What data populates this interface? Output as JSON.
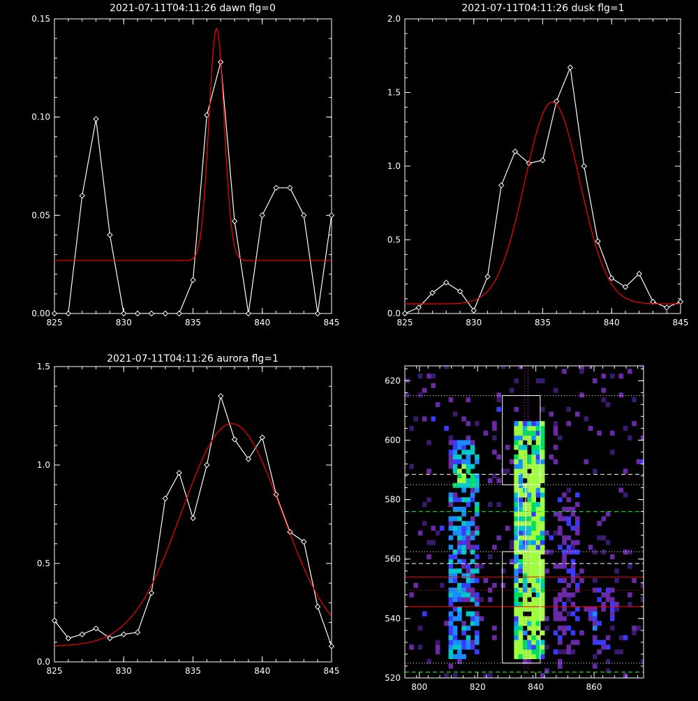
{
  "chart_data": [
    {
      "type": "line",
      "title": "2021-07-11T04:11:26 dawn flg=0",
      "xlim": [
        825,
        845
      ],
      "ylim": [
        0,
        0.15
      ],
      "xticks": [
        "825",
        "830",
        "835",
        "840",
        "845"
      ],
      "xtick_values": [
        825,
        830,
        835,
        840,
        845
      ],
      "yticks": [
        "0.00",
        "0.05",
        "0.10",
        "0.15"
      ],
      "ytick_values": [
        0,
        0.05,
        0.1,
        0.15
      ],
      "series": [
        {
          "color": "#ffffff",
          "marker": "diamond",
          "x": [
            825,
            826,
            827,
            828,
            829,
            830,
            831,
            832,
            833,
            834,
            835,
            836,
            837,
            838,
            839,
            840,
            841,
            842,
            843,
            844,
            845
          ],
          "y": [
            0,
            0,
            0.06,
            0.099,
            0.04,
            0,
            0,
            0,
            0,
            0,
            0.017,
            0.101,
            0.128,
            0.047,
            0,
            0.05,
            0.064,
            0.064,
            0.05,
            0,
            0.05
          ]
        },
        {
          "color": "#ff0000",
          "model": "gaussian",
          "amplitude": 0.118,
          "center": 836.7,
          "sigma": 0.55,
          "offset": 0.027
        }
      ]
    },
    {
      "type": "line",
      "title": "2021-07-11T04:11:26 dusk flg=1",
      "xlim": [
        825,
        845
      ],
      "ylim": [
        0,
        2.0
      ],
      "xticks": [
        "825",
        "830",
        "835",
        "840",
        "845"
      ],
      "xtick_values": [
        825,
        830,
        835,
        840,
        845
      ],
      "yticks": [
        "0.0",
        "0.5",
        "1.0",
        "1.5",
        "2.0"
      ],
      "ytick_values": [
        0,
        0.5,
        1.0,
        1.5,
        2.0
      ],
      "series": [
        {
          "color": "#ffffff",
          "marker": "diamond",
          "x": [
            825,
            826,
            827,
            828,
            829,
            830,
            831,
            832,
            833,
            834,
            835,
            836,
            837,
            838,
            839,
            840,
            841,
            842,
            843,
            844,
            845
          ],
          "y": [
            0,
            0.04,
            0.14,
            0.21,
            0.15,
            0.02,
            0.25,
            0.87,
            1.1,
            1.02,
            1.04,
            1.44,
            1.67,
            1.0,
            0.49,
            0.24,
            0.18,
            0.27,
            0.08,
            0.04,
            0.08
          ]
        },
        {
          "color": "#ff0000",
          "model": "gaussian",
          "amplitude": 1.37,
          "center": 835.7,
          "sigma": 2.0,
          "offset": 0.065
        }
      ]
    },
    {
      "type": "line",
      "title": "2021-07-11T04:11:26 aurora flg=1",
      "xlim": [
        825,
        845
      ],
      "ylim": [
        0,
        1.5
      ],
      "xticks": [
        "825",
        "830",
        "835",
        "840",
        "845"
      ],
      "xtick_values": [
        825,
        830,
        835,
        840,
        845
      ],
      "yticks": [
        "0.0",
        "0.5",
        "1.0",
        "1.5"
      ],
      "ytick_values": [
        0,
        0.5,
        1.0,
        1.5
      ],
      "series": [
        {
          "color": "#ffffff",
          "marker": "diamond",
          "x": [
            825,
            826,
            827,
            828,
            829,
            830,
            831,
            832,
            833,
            834,
            835,
            836,
            837,
            838,
            839,
            840,
            841,
            842,
            843,
            844,
            845
          ],
          "y": [
            0.21,
            0.12,
            0.14,
            0.17,
            0.12,
            0.14,
            0.15,
            0.35,
            0.83,
            0.96,
            0.73,
            1.0,
            1.35,
            1.13,
            1.03,
            1.14,
            0.85,
            0.66,
            0.61,
            0.28,
            0.08
          ]
        },
        {
          "color": "#ff0000",
          "model": "gaussian",
          "amplitude": 1.13,
          "center": 837.8,
          "sigma": 3.6,
          "offset": 0.08
        }
      ]
    },
    {
      "type": "heatmap",
      "xlim": [
        795,
        877
      ],
      "ylim": [
        520,
        625
      ],
      "xticks": [
        "800",
        "820",
        "840",
        "860"
      ],
      "xtick_values": [
        800,
        820,
        840,
        860
      ],
      "yticks": [
        "520",
        "540",
        "560",
        "580",
        "600",
        "620"
      ],
      "ytick_values": [
        520,
        540,
        560,
        580,
        600,
        620
      ],
      "colormap": [
        "#3a1a6e",
        "#6a2aa8",
        "#3a3aff",
        "#1a8cff",
        "#00c8c8",
        "#00e060",
        "#a0ff40"
      ],
      "hot_columns": [
        {
          "x_range": [
            810,
            820
          ],
          "y_range": [
            525,
            600
          ],
          "intensity": 0.55
        },
        {
          "x_range": [
            832,
            842
          ],
          "y_range": [
            525,
            605
          ],
          "intensity": 0.9
        },
        {
          "x_range": [
            846,
            854
          ],
          "y_range": [
            527,
            580
          ],
          "intensity": 0.3
        },
        {
          "x_range": [
            858,
            866
          ],
          "y_range": [
            527,
            550
          ],
          "intensity": 0.35
        }
      ],
      "boxes": [
        {
          "x_range": [
            828.5,
            841.5
          ],
          "y_range": [
            585,
            615
          ],
          "color": "#ffffff"
        },
        {
          "x_range": [
            828.5,
            841.5
          ],
          "y_range": [
            525,
            562.5
          ],
          "color": "#ffffff"
        },
        {
          "x_range": [
            834,
            836.5
          ],
          "y_range": [
            562.5,
            585
          ],
          "color": "#ffffff"
        }
      ],
      "hlines": [
        {
          "y": 615,
          "color": "#ffffff",
          "style": "dotted"
        },
        {
          "y": 588.5,
          "color": "#ffffff",
          "style": "dashed"
        },
        {
          "y": 585,
          "color": "#ffffff",
          "style": "dotted"
        },
        {
          "y": 576,
          "color": "#00ff00",
          "style": "dashed"
        },
        {
          "y": 562.5,
          "color": "#ffffff",
          "style": "dotted"
        },
        {
          "y": 558.5,
          "color": "#ffffff",
          "style": "dashed"
        },
        {
          "y": 554,
          "color": "#ff0000",
          "style": "solid"
        },
        {
          "y": 549.5,
          "color": "#ff0000",
          "style": "dotted"
        },
        {
          "y": 544,
          "color": "#ff0000",
          "style": "solid"
        },
        {
          "y": 525,
          "color": "#ffffff",
          "style": "dotted"
        },
        {
          "y": 522,
          "color": "#00ff00",
          "style": "dashed"
        }
      ],
      "vlines": [
        {
          "x": 836.2,
          "color": "#ff00ff",
          "style": "dotted"
        },
        {
          "x": 837.3,
          "color": "#ff00ff",
          "style": "dotted"
        }
      ]
    }
  ]
}
